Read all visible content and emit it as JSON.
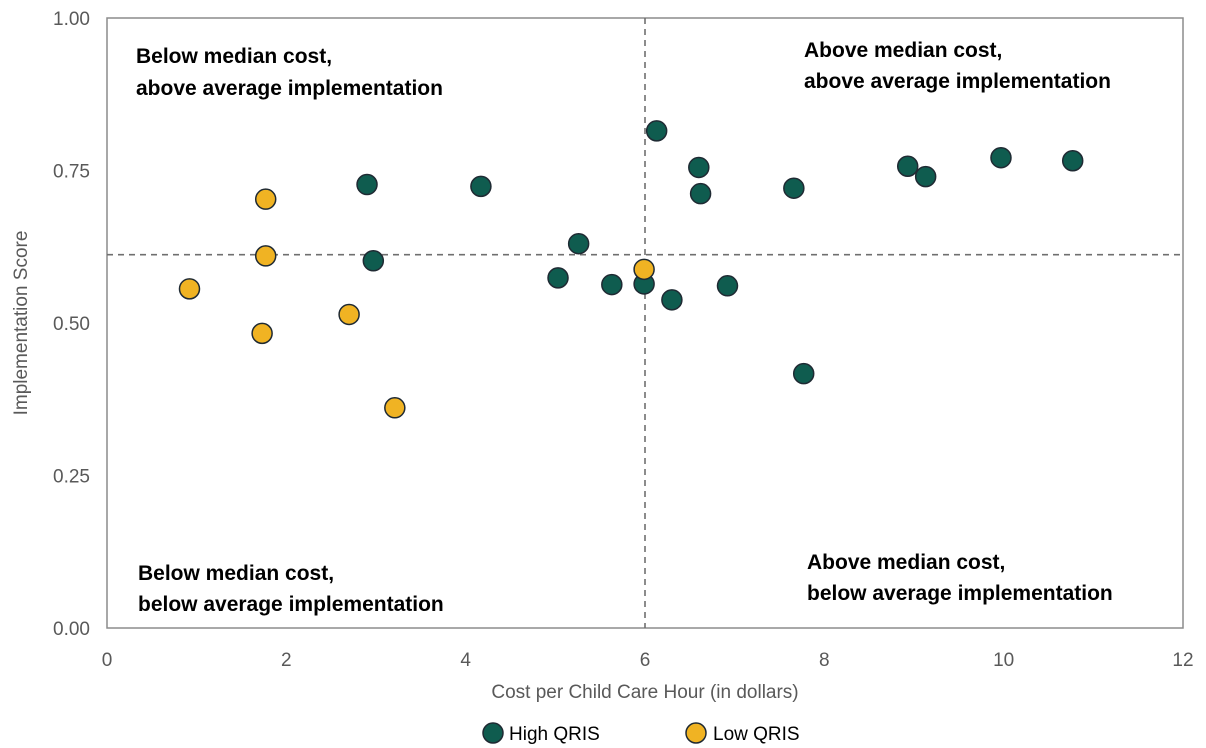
{
  "chart_data": {
    "type": "scatter",
    "xlabel": "Cost per Child Care Hour (in dollars)",
    "ylabel": "Implementation Score",
    "xlim": [
      0,
      12
    ],
    "ylim": [
      0,
      1
    ],
    "x_ticks": [
      "0",
      "2",
      "4",
      "6",
      "8",
      "10",
      "12"
    ],
    "y_ticks": [
      "0.00",
      "0.25",
      "0.50",
      "0.75",
      "1.00"
    ],
    "grid": false,
    "legend_position": "bottom",
    "reference_lines": {
      "median_cost_x": 6.0,
      "average_implementation_y": 0.612
    },
    "quadrant_labels": {
      "top_left": [
        "Below median cost,",
        "above average implementation"
      ],
      "top_right": [
        "Above median cost,",
        "above average implementation"
      ],
      "bottom_left": [
        "Below median cost,",
        "below average implementation"
      ],
      "bottom_right": [
        "Above median cost,",
        "below average implementation"
      ]
    },
    "series": [
      {
        "name": "High QRIS",
        "color": "#0f5c4f",
        "points": [
          {
            "x": 2.9,
            "y": 0.727
          },
          {
            "x": 2.97,
            "y": 0.602
          },
          {
            "x": 4.17,
            "y": 0.724
          },
          {
            "x": 5.03,
            "y": 0.574
          },
          {
            "x": 5.26,
            "y": 0.63
          },
          {
            "x": 5.63,
            "y": 0.563
          },
          {
            "x": 5.99,
            "y": 0.564
          },
          {
            "x": 6.13,
            "y": 0.815
          },
          {
            "x": 6.3,
            "y": 0.538
          },
          {
            "x": 6.6,
            "y": 0.755
          },
          {
            "x": 6.62,
            "y": 0.712
          },
          {
            "x": 6.92,
            "y": 0.561
          },
          {
            "x": 7.66,
            "y": 0.721
          },
          {
            "x": 7.77,
            "y": 0.417
          },
          {
            "x": 8.93,
            "y": 0.757
          },
          {
            "x": 9.13,
            "y": 0.74
          },
          {
            "x": 9.97,
            "y": 0.771
          },
          {
            "x": 10.77,
            "y": 0.766
          }
        ]
      },
      {
        "name": "Low QRIS",
        "color": "#f0b323",
        "points": [
          {
            "x": 0.92,
            "y": 0.556
          },
          {
            "x": 1.73,
            "y": 0.483
          },
          {
            "x": 1.77,
            "y": 0.703
          },
          {
            "x": 1.77,
            "y": 0.61
          },
          {
            "x": 2.7,
            "y": 0.514
          },
          {
            "x": 3.21,
            "y": 0.361
          },
          {
            "x": 5.99,
            "y": 0.588
          }
        ]
      }
    ]
  }
}
